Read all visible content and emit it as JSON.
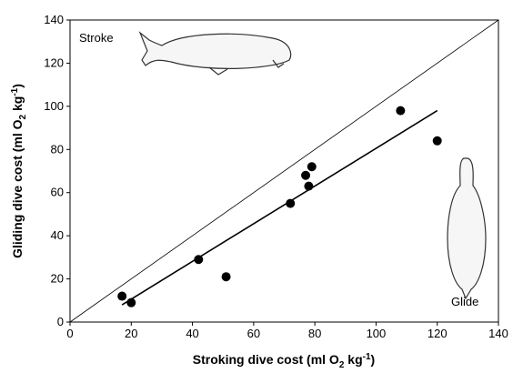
{
  "chart_data": {
    "type": "scatter",
    "xlabel_parts": [
      "Stroking dive cost (ml O",
      "2",
      " kg",
      "-1",
      ")"
    ],
    "ylabel_parts": [
      "Gliding dive cost (ml O",
      "2",
      " kg",
      "-1",
      ")"
    ],
    "x": [
      17,
      20,
      42,
      51,
      72,
      77,
      78,
      79,
      108,
      120
    ],
    "values": [
      12,
      9,
      29,
      21,
      55,
      68,
      63,
      72,
      98,
      84
    ],
    "color": "#000000",
    "fit_line": {
      "x": [
        17,
        120
      ],
      "y": [
        8,
        98
      ]
    },
    "reference_line": {
      "x": [
        0,
        140
      ],
      "y": [
        0,
        140
      ]
    },
    "annotations": [
      "Stroke",
      "Glide"
    ],
    "xlim": [
      0,
      140
    ],
    "ylim": [
      0,
      140
    ],
    "xticks": [
      0,
      20,
      40,
      60,
      80,
      100,
      120,
      140
    ],
    "yticks": [
      0,
      20,
      40,
      60,
      80,
      100,
      120,
      140
    ],
    "grid": false
  }
}
